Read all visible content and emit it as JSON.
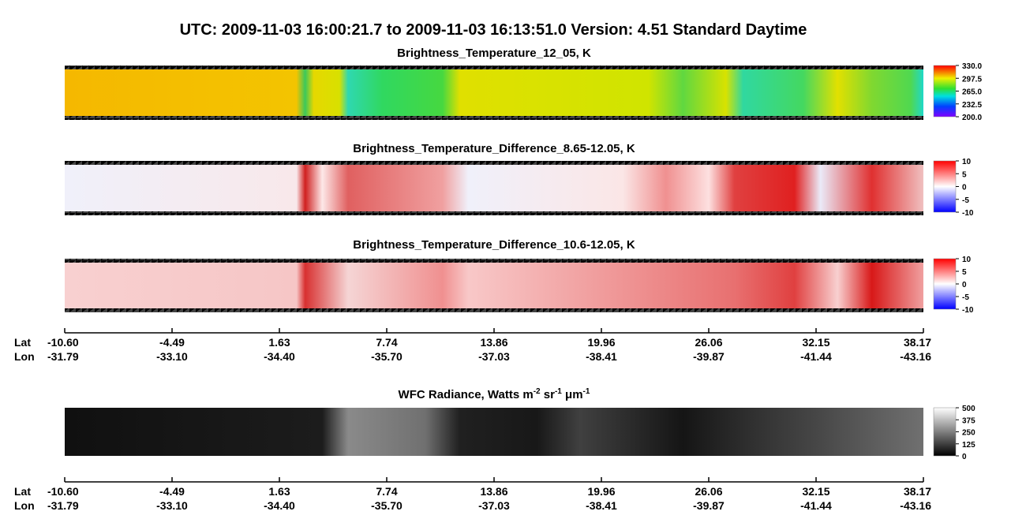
{
  "header": {
    "title": "UTC:  2009-11-03   16:00:21.7  to  2009-11-03   16:13:51.0    Version: 4.51  Standard Daytime"
  },
  "panels": [
    {
      "title": "Brightness_Temperature_12_05, K",
      "colorbar_labels": [
        "330.0",
        "297.5",
        "265.0",
        "232.5",
        "200.0"
      ]
    },
    {
      "title": "Brightness_Temperature_Difference_8.65-12.05, K",
      "colorbar_labels": [
        "10",
        "5",
        "0",
        "-5",
        "-10"
      ]
    },
    {
      "title": "Brightness_Temperature_Difference_10.6-12.05, K",
      "colorbar_labels": [
        "10",
        "5",
        "0",
        "-5",
        "-10"
      ]
    },
    {
      "title_parts": [
        "WFC Radiance, Watts m",
        "-2",
        " sr",
        "-1",
        " μm",
        "-1"
      ],
      "colorbar_labels": [
        "500",
        "375",
        "250",
        "125",
        "0"
      ]
    }
  ],
  "axes": [
    {
      "lat_name": "Lat",
      "lon_name": "Lon",
      "lat": [
        "-10.60",
        "-4.49",
        "1.63",
        "7.74",
        "13.86",
        "19.96",
        "26.06",
        "32.15",
        "38.17"
      ],
      "lon": [
        "-31.79",
        "-33.10",
        "-34.40",
        "-35.70",
        "-37.03",
        "-38.41",
        "-39.87",
        "-41.44",
        "-43.16"
      ]
    },
    {
      "lat_name": "Lat",
      "lon_name": "Lon",
      "lat": [
        "-10.60",
        "-4.49",
        "1.63",
        "7.74",
        "13.86",
        "19.96",
        "26.06",
        "32.15",
        "38.17"
      ],
      "lon": [
        "-31.79",
        "-33.10",
        "-34.40",
        "-35.70",
        "-37.03",
        "-38.41",
        "-39.87",
        "-41.44",
        "-43.16"
      ]
    }
  ]
}
